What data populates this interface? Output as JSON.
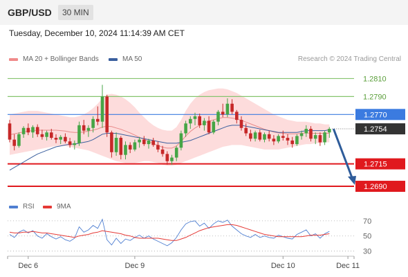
{
  "header": {
    "pair": "GBP/USD",
    "timeframe": "30 MIN"
  },
  "datetime": "Tuesday, December 10, 2024 11:14:39 AM CET",
  "legend": {
    "bb_label": "MA 20 + Bollinger Bands",
    "ma50_label": "MA 50",
    "credit": "Research © 2024 Trading Central"
  },
  "rsi_legend": {
    "rsi_label": "RSI",
    "ma_label": "9MA"
  },
  "colors": {
    "candle_up": "#46a546",
    "candle_down": "#c62828",
    "bollinger_fill": "#fddcdc",
    "ma20": "#e88a8a",
    "ma50": "#3a5f9e",
    "support": "#e0191e",
    "pivot": "#3b7be0",
    "resistance": "#86c46e",
    "forecast_arrow": "#2e5c9a",
    "last_price_box": "#333333",
    "rsi_line": "#4f7fd1",
    "rsi_ma": "#e53935"
  },
  "chart_data": [
    {
      "type": "candlestick",
      "title": "GBP/USD 30 MIN",
      "ylim": [
        1.268,
        1.2825
      ],
      "x_tick_labels": [
        "Dec 6",
        "Dec 9",
        "Dec 10",
        "Dec 11"
      ],
      "x_tick_index": [
        4,
        27,
        59,
        73
      ],
      "candles": [
        [
          1.276,
          1.2764,
          1.2739,
          1.2742
        ],
        [
          1.2742,
          1.2748,
          1.273,
          1.2735
        ],
        [
          1.2735,
          1.275,
          1.2733,
          1.2748
        ],
        [
          1.2748,
          1.2757,
          1.2744,
          1.2755
        ],
        [
          1.2755,
          1.276,
          1.2747,
          1.275
        ],
        [
          1.275,
          1.2758,
          1.2744,
          1.2756
        ],
        [
          1.2756,
          1.2759,
          1.2745,
          1.2748
        ],
        [
          1.2748,
          1.2753,
          1.2742,
          1.2745
        ],
        [
          1.2745,
          1.2752,
          1.2741,
          1.275
        ],
        [
          1.275,
          1.2754,
          1.2742,
          1.2744
        ],
        [
          1.2744,
          1.2748,
          1.2738,
          1.2742
        ],
        [
          1.2742,
          1.2747,
          1.2737,
          1.2745
        ],
        [
          1.2745,
          1.2749,
          1.2738,
          1.274
        ],
        [
          1.274,
          1.2744,
          1.2733,
          1.2736
        ],
        [
          1.2736,
          1.2741,
          1.2731,
          1.2738
        ],
        [
          1.2738,
          1.2762,
          1.2735,
          1.2758
        ],
        [
          1.2758,
          1.2764,
          1.2748,
          1.2752
        ],
        [
          1.2752,
          1.2758,
          1.2745,
          1.2755
        ],
        [
          1.2755,
          1.2768,
          1.275,
          1.2765
        ],
        [
          1.2765,
          1.2779,
          1.2758,
          1.2762
        ],
        [
          1.2762,
          1.2803,
          1.2755,
          1.279
        ],
        [
          1.279,
          1.2792,
          1.2745,
          1.275
        ],
        [
          1.275,
          1.2752,
          1.2722,
          1.2728
        ],
        [
          1.2728,
          1.275,
          1.2724,
          1.2744
        ],
        [
          1.2744,
          1.2746,
          1.272,
          1.2725
        ],
        [
          1.2725,
          1.274,
          1.272,
          1.2736
        ],
        [
          1.2736,
          1.2739,
          1.2727,
          1.2731
        ],
        [
          1.2731,
          1.2742,
          1.2729,
          1.2739
        ],
        [
          1.2739,
          1.2745,
          1.2733,
          1.2742
        ],
        [
          1.2742,
          1.2746,
          1.2735,
          1.2737
        ],
        [
          1.2737,
          1.2743,
          1.2732,
          1.2741
        ],
        [
          1.2741,
          1.2744,
          1.2734,
          1.2736
        ],
        [
          1.2736,
          1.274,
          1.2728,
          1.2731
        ],
        [
          1.2731,
          1.2735,
          1.2723,
          1.2726
        ],
        [
          1.2726,
          1.2729,
          1.2714,
          1.2718
        ],
        [
          1.2718,
          1.2725,
          1.2714,
          1.2722
        ],
        [
          1.2722,
          1.2735,
          1.2718,
          1.2733
        ],
        [
          1.2733,
          1.2752,
          1.273,
          1.2749
        ],
        [
          1.2749,
          1.2763,
          1.2745,
          1.276
        ],
        [
          1.276,
          1.2768,
          1.2754,
          1.2765
        ],
        [
          1.2765,
          1.2772,
          1.2758,
          1.2768
        ],
        [
          1.2768,
          1.2771,
          1.2755,
          1.2758
        ],
        [
          1.2758,
          1.2766,
          1.2752,
          1.2763
        ],
        [
          1.2763,
          1.2768,
          1.2748,
          1.275
        ],
        [
          1.275,
          1.2764,
          1.2748,
          1.2762
        ],
        [
          1.2762,
          1.2775,
          1.2758,
          1.2773
        ],
        [
          1.2773,
          1.2782,
          1.2767,
          1.277
        ],
        [
          1.277,
          1.2788,
          1.2767,
          1.2782
        ],
        [
          1.2782,
          1.2787,
          1.277,
          1.2773
        ],
        [
          1.2773,
          1.2775,
          1.276,
          1.2764
        ],
        [
          1.2764,
          1.2768,
          1.2752,
          1.2755
        ],
        [
          1.2755,
          1.276,
          1.2746,
          1.2749
        ],
        [
          1.2749,
          1.2753,
          1.274,
          1.2743
        ],
        [
          1.2743,
          1.2752,
          1.274,
          1.275
        ],
        [
          1.275,
          1.2753,
          1.274,
          1.2742
        ],
        [
          1.2742,
          1.275,
          1.2739,
          1.2748
        ],
        [
          1.2748,
          1.2752,
          1.274,
          1.2743
        ],
        [
          1.2743,
          1.2747,
          1.2736,
          1.274
        ],
        [
          1.274,
          1.2748,
          1.2738,
          1.2746
        ],
        [
          1.2746,
          1.2752,
          1.2741,
          1.2744
        ],
        [
          1.2744,
          1.2748,
          1.2736,
          1.2741
        ],
        [
          1.2741,
          1.2745,
          1.2733,
          1.2737
        ],
        [
          1.2737,
          1.2748,
          1.2735,
          1.2746
        ],
        [
          1.2746,
          1.2752,
          1.2742,
          1.2749
        ],
        [
          1.2749,
          1.2758,
          1.2745,
          1.2754
        ],
        [
          1.2754,
          1.2757,
          1.274,
          1.2743
        ],
        [
          1.2743,
          1.275,
          1.2737,
          1.2747
        ],
        [
          1.2747,
          1.275,
          1.2735,
          1.2739
        ],
        [
          1.2739,
          1.2752,
          1.2736,
          1.275
        ],
        [
          1.275,
          1.2756,
          1.2744,
          1.2754
        ]
      ],
      "ma50": [
        1.2708,
        1.2711,
        1.2714,
        1.2717,
        1.272,
        1.2723,
        1.2726,
        1.2728,
        1.273,
        1.2732,
        1.2734,
        1.2735,
        1.2736,
        1.2737,
        1.2737,
        1.2738,
        1.2739,
        1.274,
        1.2742,
        1.2745,
        1.2748,
        1.2749,
        1.2749,
        1.2749,
        1.2748,
        1.2747,
        1.2746,
        1.2745,
        1.2744,
        1.2743,
        1.2742,
        1.2741,
        1.274,
        1.2739,
        1.2738,
        1.2738,
        1.2738,
        1.2739,
        1.274,
        1.2741,
        1.2743,
        1.2745,
        1.2747,
        1.2749,
        1.2751,
        1.2753,
        1.2755,
        1.2757,
        1.2758,
        1.2758,
        1.2758,
        1.2757,
        1.2756,
        1.2755,
        1.2754,
        1.2753,
        1.2752,
        1.2751,
        1.275,
        1.275,
        1.275,
        1.275,
        1.275,
        1.2751,
        1.2752,
        1.2752,
        1.2752,
        1.2752,
        1.2752,
        1.2753
      ],
      "bollinger": {
        "upper": [
          1.277,
          1.2771,
          1.2772,
          1.2773,
          1.2774,
          1.2774,
          1.2774,
          1.2773,
          1.2772,
          1.2771,
          1.277,
          1.2769,
          1.2768,
          1.2767,
          1.2767,
          1.2768,
          1.277,
          1.2773,
          1.2777,
          1.2782,
          1.2788,
          1.2792,
          1.2793,
          1.2792,
          1.279,
          1.2787,
          1.2783,
          1.2778,
          1.2772,
          1.2767,
          1.2762,
          1.2758,
          1.2755,
          1.2753,
          1.2752,
          1.2752,
          1.2756,
          1.2764,
          1.2774,
          1.2782,
          1.2788,
          1.2792,
          1.2795,
          1.2797,
          1.2798,
          1.2799,
          1.2799,
          1.2798,
          1.2796,
          1.2794,
          1.2791,
          1.2788,
          1.2785,
          1.2782,
          1.2779,
          1.2776,
          1.2773,
          1.277,
          1.2768,
          1.2766,
          1.2764,
          1.2763,
          1.2762,
          1.2762,
          1.2762,
          1.2761,
          1.276,
          1.276,
          1.2759,
          1.2759
        ],
        "lower": [
          1.2725,
          1.2726,
          1.2727,
          1.2728,
          1.2729,
          1.273,
          1.2731,
          1.2732,
          1.2733,
          1.2734,
          1.2735,
          1.2735,
          1.2735,
          1.2734,
          1.2733,
          1.2732,
          1.2731,
          1.273,
          1.2728,
          1.2726,
          1.2724,
          1.2722,
          1.272,
          1.2718,
          1.2717,
          1.2716,
          1.2716,
          1.2716,
          1.2717,
          1.2718,
          1.2718,
          1.2717,
          1.2716,
          1.2714,
          1.2713,
          1.2713,
          1.2714,
          1.2716,
          1.2718,
          1.272,
          1.2722,
          1.2724,
          1.2726,
          1.2728,
          1.273,
          1.2732,
          1.2734,
          1.2735,
          1.2736,
          1.2736,
          1.2736,
          1.2735,
          1.2734,
          1.2733,
          1.2732,
          1.2731,
          1.2731,
          1.2731,
          1.2731,
          1.2732,
          1.2733,
          1.2734,
          1.2735,
          1.2736,
          1.2737,
          1.2737,
          1.2738,
          1.2738,
          1.2739,
          1.2739
        ]
      },
      "levels": [
        {
          "value": 1.281,
          "label": "1.2810",
          "kind": "resistance"
        },
        {
          "value": 1.279,
          "label": "1.2790",
          "kind": "resistance"
        },
        {
          "value": 1.277,
          "label": "1.2770",
          "kind": "pivot"
        },
        {
          "value": 1.2754,
          "label": "1.2754",
          "kind": "last"
        },
        {
          "value": 1.2715,
          "label": "1.2715",
          "kind": "support"
        },
        {
          "value": 1.269,
          "label": "1.2690",
          "kind": "support"
        }
      ],
      "forecast": {
        "from": 1.2754,
        "to": 1.269
      }
    },
    {
      "type": "line",
      "title": "RSI",
      "ylim": [
        25,
        80
      ],
      "y_ticks": [
        70,
        50,
        30
      ],
      "series": [
        {
          "name": "RSI",
          "values": [
            52,
            48,
            55,
            58,
            54,
            57,
            50,
            47,
            53,
            49,
            46,
            49,
            45,
            43,
            47,
            62,
            55,
            58,
            64,
            60,
            72,
            45,
            38,
            47,
            40,
            46,
            44,
            48,
            51,
            47,
            50,
            46,
            43,
            40,
            37,
            41,
            48,
            58,
            66,
            69,
            70,
            63,
            67,
            60,
            66,
            70,
            68,
            71,
            63,
            58,
            53,
            50,
            48,
            52,
            48,
            50,
            48,
            47,
            51,
            49,
            47,
            46,
            52,
            55,
            58,
            50,
            53,
            47,
            53,
            56
          ]
        },
        {
          "name": "9MA",
          "values": [
            55,
            54,
            54,
            55,
            55,
            56,
            55,
            54,
            54,
            53,
            52,
            51,
            50,
            49,
            48,
            50,
            51,
            52,
            54,
            55,
            57,
            56,
            55,
            54,
            53,
            51,
            50,
            48,
            47,
            47,
            47,
            47,
            47,
            46,
            45,
            44,
            44,
            46,
            48,
            51,
            54,
            57,
            59,
            61,
            62,
            63,
            64,
            65,
            65,
            64,
            62,
            60,
            58,
            56,
            54,
            52,
            51,
            50,
            49,
            49,
            49,
            49,
            49,
            49,
            50,
            51,
            51,
            51,
            52,
            53
          ]
        }
      ]
    }
  ]
}
